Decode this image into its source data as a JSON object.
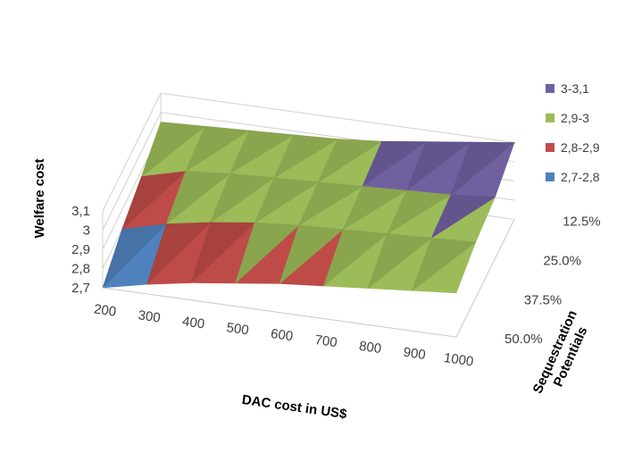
{
  "chart_data": {
    "type": "surface",
    "title": "",
    "xlabel": "DAC cost in US$",
    "ylabel": "Sequestration Potentials",
    "zlabel": "Welfare cost",
    "x_categories": [
      "200",
      "300",
      "400",
      "500",
      "600",
      "700",
      "800",
      "900",
      "1000"
    ],
    "y_categories": [
      "12.5%",
      "25.0%",
      "37.5%",
      "50.0%"
    ],
    "z_ticks": [
      "2,7",
      "2,8",
      "2,9",
      "3",
      "3,1"
    ],
    "zlim": [
      2.7,
      3.1
    ],
    "legend_position": "right",
    "bands": [
      {
        "name": "3-3,1",
        "min": 3.0,
        "max": 3.1,
        "color": "#7160a0"
      },
      {
        "name": "2,9-3",
        "min": 2.9,
        "max": 3.0,
        "color": "#9cbb59"
      },
      {
        "name": "2,8-2,9",
        "min": 2.8,
        "max": 2.9,
        "color": "#be4b48"
      },
      {
        "name": "2,7-2,8",
        "min": 2.7,
        "max": 2.8,
        "color": "#4f81bd"
      }
    ],
    "surface": {
      "12.5%": [
        2.95,
        2.96,
        2.97,
        2.98,
        2.99,
        3.01,
        3.04,
        3.07,
        3.1
      ],
      "25.0%": [
        2.87,
        2.93,
        2.95,
        2.96,
        2.97,
        2.98,
        2.99,
        3.0,
        3.02
      ],
      "37.5%": [
        2.8,
        2.86,
        2.9,
        2.93,
        2.95,
        2.96,
        2.97,
        2.98,
        2.99
      ],
      "50.0%": [
        2.7,
        2.75,
        2.79,
        2.82,
        2.85,
        2.87,
        2.89,
        2.91,
        2.93
      ]
    }
  },
  "legend": [
    {
      "label": "3-3,1",
      "color": "#7160a0"
    },
    {
      "label": "2,9-3",
      "color": "#9cbb59"
    },
    {
      "label": "2,8-2,9",
      "color": "#be4b48"
    },
    {
      "label": "2,7-2,8",
      "color": "#4f81bd"
    }
  ]
}
